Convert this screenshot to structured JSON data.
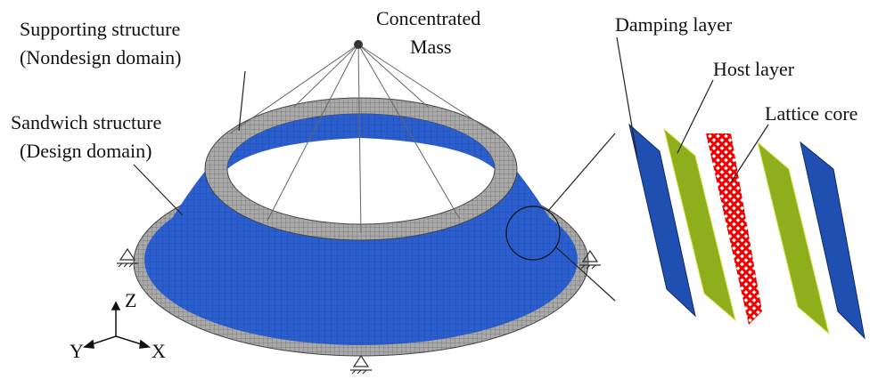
{
  "labels": {
    "mass": [
      "Concentrated",
      "Mass"
    ],
    "supporting": [
      "Supporting structure",
      "(Nondesign domain)"
    ],
    "sandwich": [
      "Sandwich structure",
      "(Design domain)"
    ],
    "damping": "Damping layer",
    "host": "Host layer",
    "lattice": "Lattice core"
  },
  "axes": {
    "z": "Z",
    "y": "Y",
    "x": "X"
  }
}
